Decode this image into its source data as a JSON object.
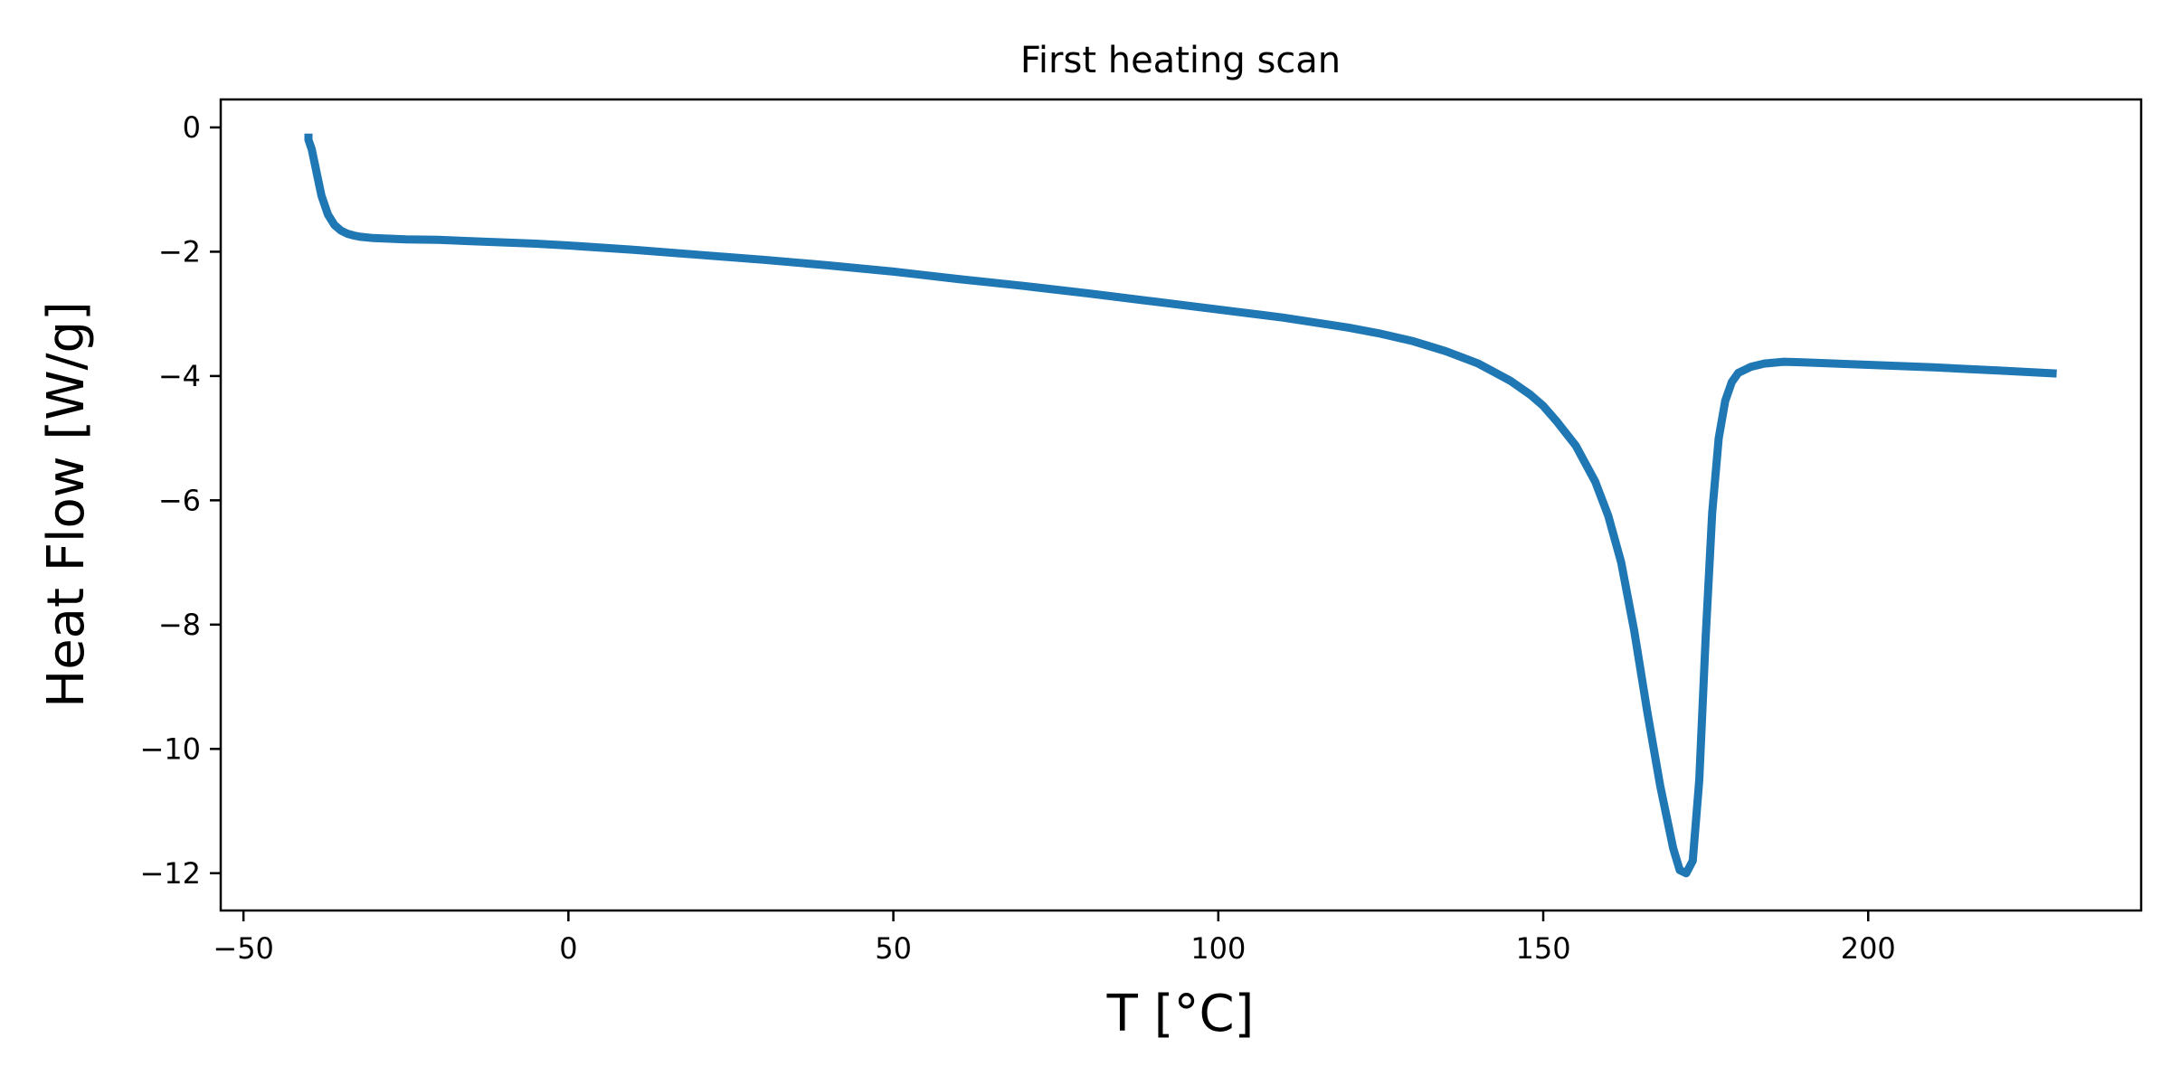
{
  "chart_data": {
    "type": "line",
    "title": "First heating scan",
    "xlabel": "T [°C]",
    "ylabel": "Heat Flow [W/g]",
    "xlim": [
      -53.5,
      242
    ],
    "ylim": [
      -12.6,
      0.45
    ],
    "xticks": [
      -50,
      0,
      50,
      100,
      150,
      200
    ],
    "xtick_labels": [
      "−50",
      "0",
      "50",
      "100",
      "150",
      "200"
    ],
    "yticks": [
      0,
      -2,
      -4,
      -6,
      -8,
      -10,
      -12
    ],
    "ytick_labels": [
      "0",
      "−2",
      "−4",
      "−6",
      "−8",
      "−10",
      "−12"
    ],
    "grid": false,
    "legend": "none",
    "series": [
      {
        "color": "#1f77b4",
        "x": [
          -40,
          -40,
          -39.5,
          -39,
          -38.5,
          -38,
          -37,
          -36,
          -35,
          -34,
          -33,
          -32,
          -30,
          -25,
          -20,
          -15,
          -10,
          -5,
          0,
          10,
          20,
          30,
          40,
          50,
          60,
          70,
          80,
          90,
          100,
          110,
          120,
          125,
          130,
          135,
          140,
          145,
          148,
          150,
          152,
          155,
          158,
          160,
          162,
          164,
          166,
          168,
          170,
          171,
          172,
          173,
          174,
          175,
          176,
          177,
          178,
          179,
          180,
          181,
          182,
          184,
          187,
          190,
          195,
          200,
          210,
          220,
          229
        ],
        "y": [
          -0.1,
          -0.2,
          -0.35,
          -0.6,
          -0.85,
          -1.1,
          -1.4,
          -1.57,
          -1.66,
          -1.71,
          -1.74,
          -1.76,
          -1.78,
          -1.8,
          -1.81,
          -1.83,
          -1.85,
          -1.87,
          -1.9,
          -1.97,
          -2.05,
          -2.13,
          -2.22,
          -2.32,
          -2.44,
          -2.55,
          -2.67,
          -2.8,
          -2.93,
          -3.06,
          -3.22,
          -3.32,
          -3.44,
          -3.6,
          -3.8,
          -4.08,
          -4.3,
          -4.48,
          -4.72,
          -5.12,
          -5.7,
          -6.25,
          -7.0,
          -8.1,
          -9.4,
          -10.6,
          -11.6,
          -11.95,
          -12.0,
          -11.8,
          -10.5,
          -8.2,
          -6.2,
          -5.0,
          -4.4,
          -4.1,
          -3.95,
          -3.9,
          -3.85,
          -3.8,
          -3.77,
          -3.78,
          -3.8,
          -3.82,
          -3.86,
          -3.91,
          -3.96
        ]
      }
    ]
  }
}
